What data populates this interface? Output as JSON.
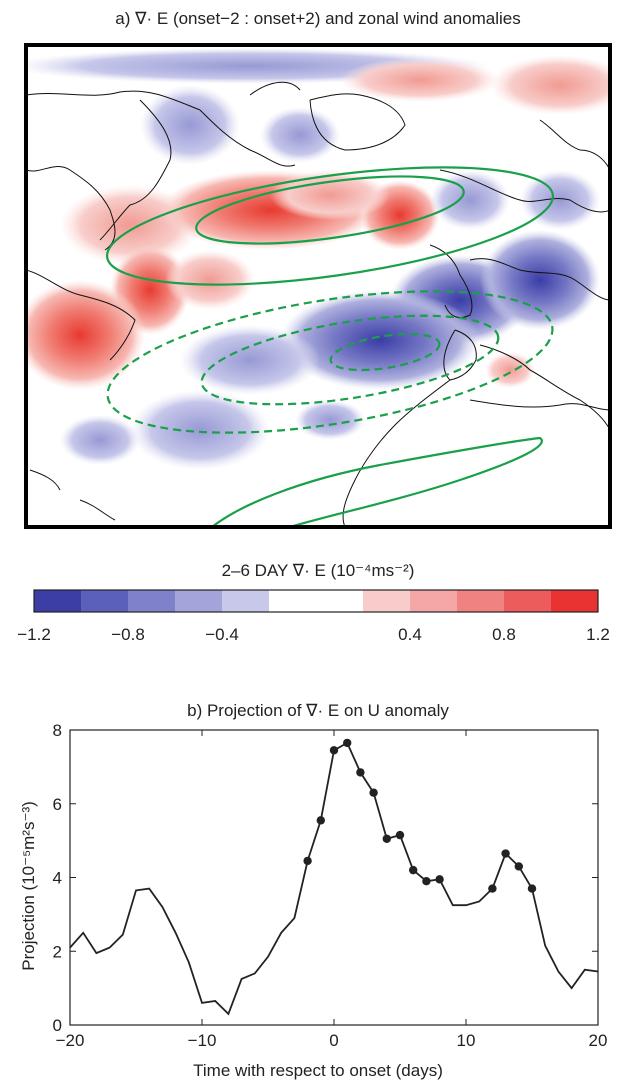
{
  "map_panel": {
    "title": "a) ∇· E (onset−2 : onset+2) and zonal wind anomalies"
  },
  "colorbar": {
    "title": "2–6 DAY ∇· E (10⁻⁴ms⁻²)",
    "colors": [
      "#3c3ea6",
      "#5b60bb",
      "#7f82cb",
      "#a3a5da",
      "#c7c8ea",
      "#ffffff",
      "#ffffff",
      "#f9cccc",
      "#f5a7a7",
      "#f18282",
      "#ed5c5c",
      "#e93232"
    ],
    "ticks": [
      "−1.2",
      "−0.8",
      "−0.4",
      "0.4",
      "0.8",
      "1.2"
    ]
  },
  "chart_data": {
    "type": "line",
    "title": "b) Projection of ∇· E on U anomaly",
    "xlabel": "Time with respect to onset (days)",
    "ylabel": "Projection (10⁻⁵m²s⁻³)",
    "xlim": [
      -20,
      20
    ],
    "ylim": [
      0,
      8
    ],
    "xticks": [
      -20,
      -10,
      0,
      10,
      20
    ],
    "yticks": [
      0,
      2,
      4,
      6,
      8
    ],
    "x": [
      -20,
      -19,
      -18,
      -17,
      -16,
      -15,
      -14,
      -13,
      -12,
      -11,
      -10,
      -9,
      -8,
      -7,
      -6,
      -5,
      -4,
      -3,
      -2,
      -1,
      0,
      1,
      2,
      3,
      4,
      5,
      6,
      7,
      8,
      9,
      10,
      11,
      12,
      13,
      14,
      15,
      16,
      17,
      18,
      19,
      20
    ],
    "y": [
      2.1,
      2.5,
      1.95,
      2.1,
      2.45,
      3.65,
      3.7,
      3.2,
      2.5,
      1.7,
      0.6,
      0.65,
      0.3,
      1.25,
      1.4,
      1.85,
      2.5,
      2.9,
      4.45,
      5.55,
      7.45,
      7.65,
      6.85,
      6.3,
      5.05,
      5.15,
      4.2,
      3.9,
      3.95,
      3.25,
      3.25,
      3.35,
      3.7,
      4.65,
      4.3,
      3.7,
      2.15,
      1.45,
      1.0,
      1.5,
      1.45
    ],
    "markers_x": [
      -2,
      -1,
      0,
      1,
      2,
      3,
      4,
      5,
      6,
      7,
      8,
      12,
      13,
      14,
      15
    ],
    "grid": false,
    "line_color": "#222222",
    "marker_color": "#222222"
  }
}
